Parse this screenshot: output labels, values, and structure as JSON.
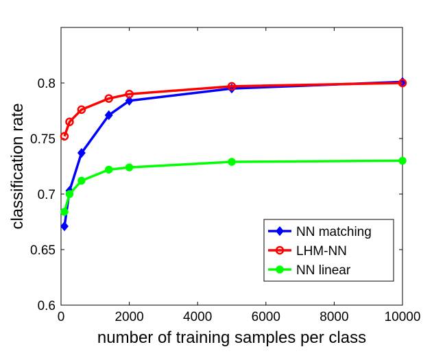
{
  "chart_data": {
    "type": "line",
    "title": "",
    "xlabel": "number of training samples per class",
    "ylabel": "classification rate",
    "xlim": [
      0,
      10000
    ],
    "ylim": [
      0.6,
      0.85
    ],
    "xticks": [
      0,
      2000,
      4000,
      6000,
      8000,
      10000
    ],
    "xtick_labels": [
      "0",
      "2000",
      "4000",
      "6000",
      "8000",
      "10000"
    ],
    "yticks": [
      0.6,
      0.65,
      0.7,
      0.75,
      0.8
    ],
    "ytick_labels": [
      "0.6",
      "0.65",
      "0.7",
      "0.75",
      "0.8"
    ],
    "grid": false,
    "legend_position": "bottom-right",
    "series": [
      {
        "name": "NN matching",
        "color": "#0000ff",
        "marker": "diamond",
        "x": [
          100,
          250,
          600,
          1400,
          2000,
          5000,
          10000
        ],
        "y": [
          0.671,
          0.703,
          0.737,
          0.771,
          0.784,
          0.795,
          0.801
        ]
      },
      {
        "name": "LHM-NN",
        "color": "#ff0000",
        "marker": "circle",
        "x": [
          100,
          250,
          600,
          1400,
          2000,
          5000,
          10000
        ],
        "y": [
          0.752,
          0.765,
          0.776,
          0.786,
          0.79,
          0.797,
          0.8
        ]
      },
      {
        "name": "NN linear",
        "color": "#00ff00",
        "marker": "filled-circle",
        "x": [
          100,
          250,
          600,
          1400,
          2000,
          5000,
          10000
        ],
        "y": [
          0.684,
          0.7,
          0.712,
          0.722,
          0.724,
          0.729,
          0.73
        ]
      }
    ]
  }
}
